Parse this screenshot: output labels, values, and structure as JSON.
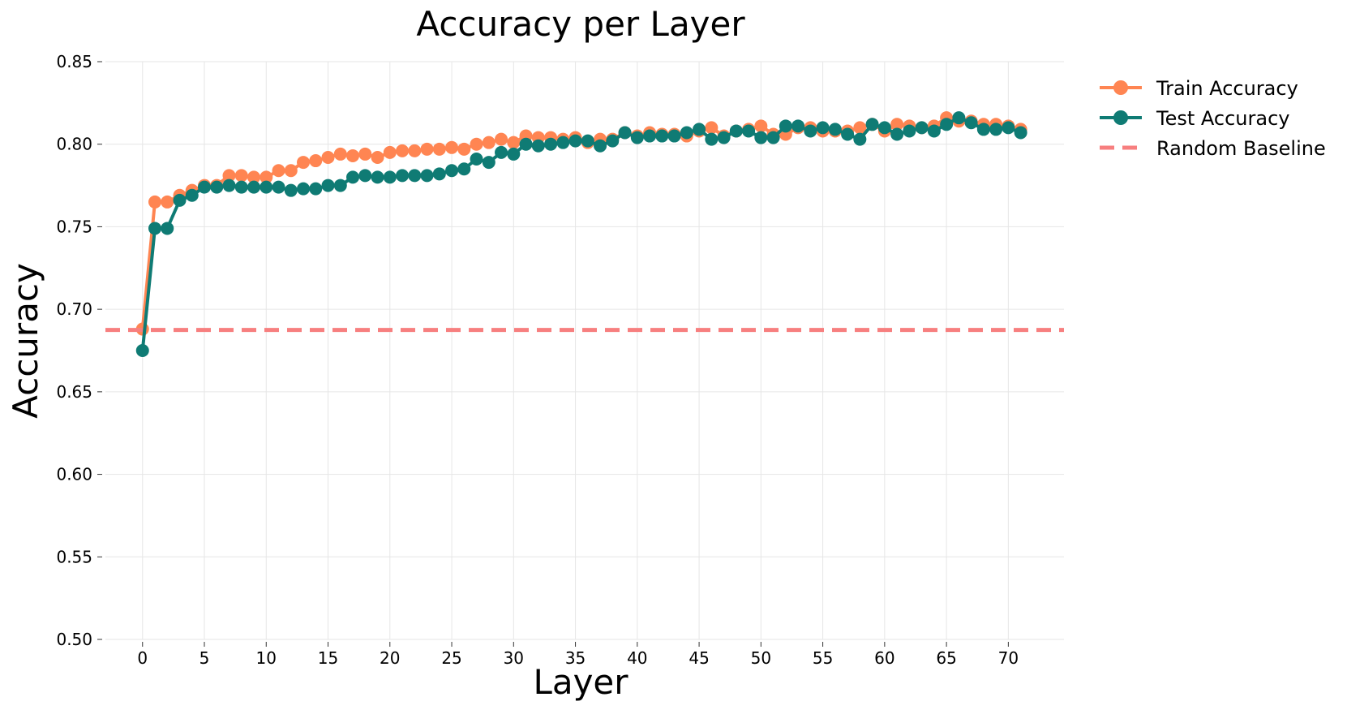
{
  "chart_data": {
    "type": "line",
    "title": "Accuracy per Layer",
    "xlabel": "Layer",
    "ylabel": "Accuracy",
    "xlim": [
      -3,
      74.5
    ],
    "ylim": [
      0.5,
      0.85
    ],
    "xticks": [
      0,
      5,
      10,
      15,
      20,
      25,
      30,
      35,
      40,
      45,
      50,
      55,
      60,
      65,
      70
    ],
    "yticks": [
      0.5,
      0.55,
      0.6,
      0.65,
      0.7,
      0.75,
      0.8,
      0.85
    ],
    "grid": true,
    "legend_position": "outside-top-right",
    "x": [
      0,
      1,
      2,
      3,
      4,
      5,
      6,
      7,
      8,
      9,
      10,
      11,
      12,
      13,
      14,
      15,
      16,
      17,
      18,
      19,
      20,
      21,
      22,
      23,
      24,
      25,
      26,
      27,
      28,
      29,
      30,
      31,
      32,
      33,
      34,
      35,
      36,
      37,
      38,
      39,
      40,
      41,
      42,
      43,
      44,
      45,
      46,
      47,
      48,
      49,
      50,
      51,
      52,
      53,
      54,
      55,
      56,
      57,
      58,
      59,
      60,
      61,
      62,
      63,
      64,
      65,
      66,
      67,
      68,
      69,
      70,
      71
    ],
    "series": [
      {
        "name": "Train Accuracy",
        "color": "#ff8552",
        "marker": "circle",
        "values": [
          0.688,
          0.765,
          0.765,
          0.769,
          0.772,
          0.775,
          0.775,
          0.781,
          0.781,
          0.78,
          0.78,
          0.784,
          0.784,
          0.789,
          0.79,
          0.792,
          0.794,
          0.793,
          0.794,
          0.792,
          0.795,
          0.796,
          0.796,
          0.797,
          0.797,
          0.798,
          0.797,
          0.8,
          0.801,
          0.803,
          0.801,
          0.805,
          0.804,
          0.804,
          0.803,
          0.804,
          0.801,
          0.803,
          0.803,
          0.807,
          0.805,
          0.807,
          0.806,
          0.806,
          0.805,
          0.808,
          0.81,
          0.805,
          0.808,
          0.809,
          0.811,
          0.806,
          0.806,
          0.81,
          0.81,
          0.808,
          0.808,
          0.808,
          0.81,
          0.812,
          0.808,
          0.812,
          0.811,
          0.81,
          0.811,
          0.816,
          0.814,
          0.814,
          0.812,
          0.812,
          0.811,
          0.809
        ]
      },
      {
        "name": "Test Accuracy",
        "color": "#0f7b74",
        "marker": "circle",
        "values": [
          0.675,
          0.749,
          0.749,
          0.766,
          0.769,
          0.774,
          0.774,
          0.775,
          0.774,
          0.774,
          0.774,
          0.774,
          0.772,
          0.773,
          0.773,
          0.775,
          0.775,
          0.78,
          0.781,
          0.78,
          0.78,
          0.781,
          0.781,
          0.781,
          0.782,
          0.784,
          0.785,
          0.791,
          0.789,
          0.795,
          0.794,
          0.8,
          0.799,
          0.8,
          0.801,
          0.802,
          0.802,
          0.799,
          0.802,
          0.807,
          0.804,
          0.805,
          0.805,
          0.805,
          0.807,
          0.809,
          0.803,
          0.804,
          0.808,
          0.808,
          0.804,
          0.804,
          0.811,
          0.811,
          0.808,
          0.81,
          0.809,
          0.806,
          0.803,
          0.812,
          0.81,
          0.806,
          0.808,
          0.81,
          0.808,
          0.812,
          0.816,
          0.813,
          0.809,
          0.809,
          0.81,
          0.807
        ]
      },
      {
        "name": "Random Baseline",
        "color": "#f77f7f",
        "style": "dashed",
        "constant": 0.6875
      }
    ]
  }
}
